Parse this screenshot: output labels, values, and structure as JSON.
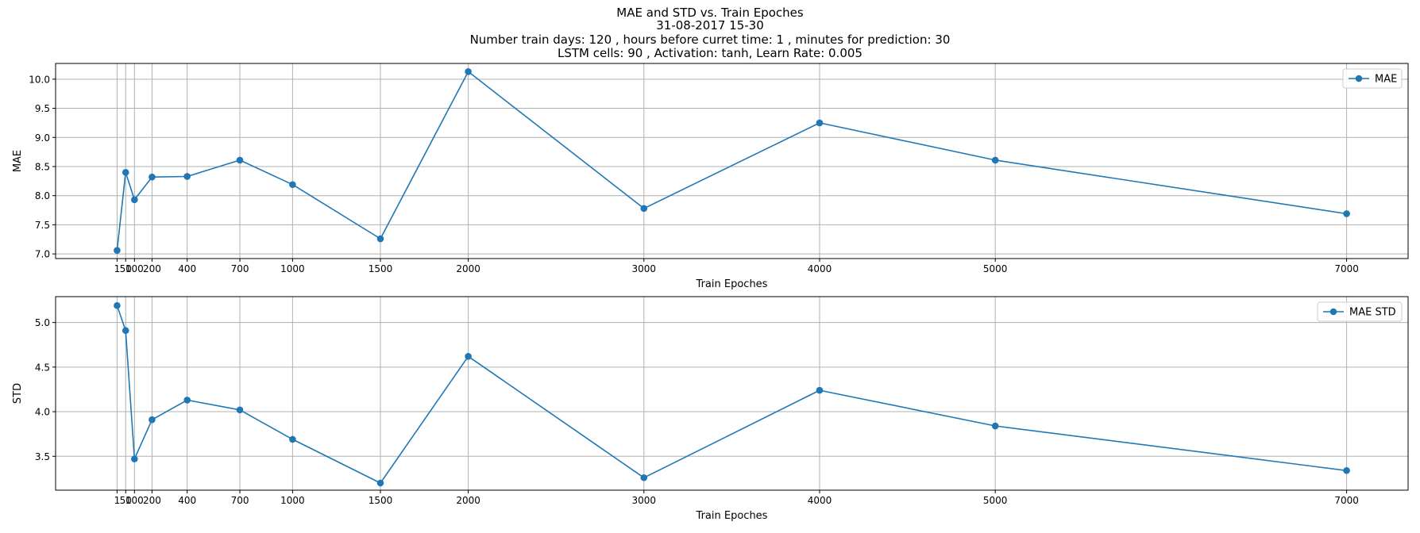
{
  "title_lines": [
    "MAE and STD vs. Train Epoches",
    "31-08-2017 15-30",
    "Number train days: 120 , hours before curret time: 1 , minutes for prediction: 30",
    "LSTM cells: 90 , Activation: tanh, Learn Rate: 0.005"
  ],
  "colors": {
    "series": "#1f77b4",
    "grid": "#b0b0b0",
    "axes": "#000000"
  },
  "chart_data": [
    {
      "type": "line",
      "title": "",
      "xlabel": "Train Epoches",
      "ylabel": "MAE",
      "x": [
        1,
        50,
        100,
        200,
        400,
        700,
        1000,
        1500,
        2000,
        3000,
        4000,
        5000,
        7000
      ],
      "xticks": [
        1,
        50,
        100,
        200,
        400,
        700,
        1000,
        1500,
        2000,
        3000,
        4000,
        5000,
        7000
      ],
      "xtick_labels": [
        "1",
        "50",
        "100",
        "200",
        "400",
        "700",
        "1000",
        "1500",
        "2000",
        "3000",
        "4000",
        "5000",
        "7000"
      ],
      "xlim": [
        -348.95,
        7349.95
      ],
      "ylim": [
        6.92,
        10.27
      ],
      "yticks": [
        7.0,
        7.5,
        8.0,
        8.5,
        9.0,
        9.5,
        10.0
      ],
      "ytick_labels": [
        "7.0",
        "7.5",
        "8.0",
        "8.5",
        "9.0",
        "9.5",
        "10.0"
      ],
      "grid": true,
      "legend_position": "top-right",
      "series": [
        {
          "name": "MAE",
          "values": [
            7.06,
            8.4,
            7.93,
            8.32,
            8.33,
            8.61,
            8.19,
            7.26,
            10.13,
            7.78,
            9.25,
            8.61,
            7.69
          ]
        }
      ]
    },
    {
      "type": "line",
      "title": "",
      "xlabel": "Train Epoches",
      "ylabel": "STD",
      "x": [
        1,
        50,
        100,
        200,
        400,
        700,
        1000,
        1500,
        2000,
        3000,
        4000,
        5000,
        7000
      ],
      "xticks": [
        1,
        50,
        100,
        200,
        400,
        700,
        1000,
        1500,
        2000,
        3000,
        4000,
        5000,
        7000
      ],
      "xtick_labels": [
        "1",
        "50",
        "100",
        "200",
        "400",
        "700",
        "1000",
        "1500",
        "2000",
        "3000",
        "4000",
        "5000",
        "7000"
      ],
      "xlim": [
        -348.95,
        7349.95
      ],
      "ylim": [
        3.12,
        5.29
      ],
      "yticks": [
        3.5,
        4.0,
        4.5,
        5.0
      ],
      "ytick_labels": [
        "3.5",
        "4.0",
        "4.5",
        "5.0"
      ],
      "grid": true,
      "legend_position": "top-right",
      "series": [
        {
          "name": "MAE STD",
          "values": [
            5.19,
            4.91,
            3.47,
            3.91,
            4.13,
            4.02,
            3.69,
            3.2,
            4.62,
            3.26,
            4.24,
            3.84,
            3.34
          ]
        }
      ]
    }
  ]
}
